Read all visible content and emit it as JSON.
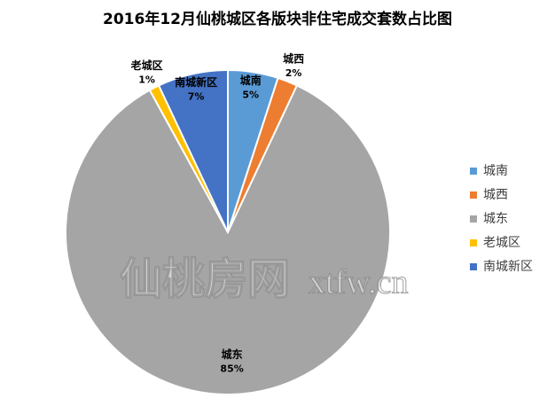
{
  "chart_data": {
    "type": "pie",
    "title": "2016年12月仙桃城区各版块非住宅成交套数占比图",
    "categories": [
      "城南",
      "城西",
      "城东",
      "老城区",
      "南城新区"
    ],
    "values": [
      5,
      2,
      85,
      1,
      7
    ],
    "value_labels": [
      "5%",
      "2%",
      "85%",
      "1%",
      "7%"
    ],
    "colors": [
      "#5b9bd5",
      "#ed7d31",
      "#a5a5a5",
      "#ffc000",
      "#4472c4"
    ],
    "legend": "right"
  },
  "watermark": {
    "name": "仙桃房网",
    "site": "xtfw.cn"
  }
}
